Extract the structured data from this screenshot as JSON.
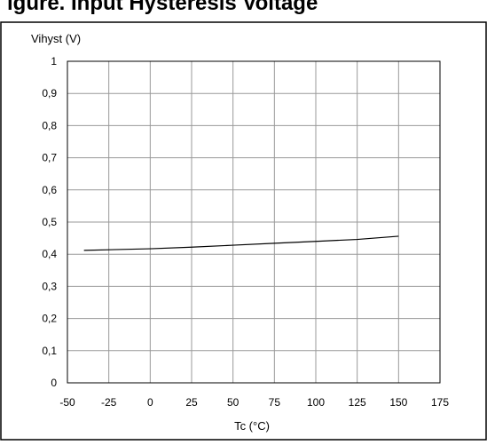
{
  "banner_text": "igure. Input Hysteresis Voltage",
  "chart_data": {
    "type": "line",
    "title": "",
    "ylabel": "Vihyst (V)",
    "xlabel": "Tc (°C)",
    "xlim": [
      -50,
      175
    ],
    "ylim": [
      0,
      1
    ],
    "x_ticks": [
      -50,
      -25,
      0,
      25,
      50,
      75,
      100,
      125,
      150,
      175
    ],
    "x_tick_labels": [
      "-50",
      "-25",
      "0",
      "25",
      "50",
      "75",
      "100",
      "125",
      "150",
      "175"
    ],
    "y_ticks": [
      0,
      0.1,
      0.2,
      0.3,
      0.4,
      0.5,
      0.6,
      0.7,
      0.8,
      0.9,
      1
    ],
    "y_tick_labels": [
      "0",
      "0,1",
      "0,2",
      "0,3",
      "0,4",
      "0,5",
      "0,6",
      "0,7",
      "0,8",
      "0,9",
      "1"
    ],
    "grid": true,
    "series": [
      {
        "x": [
          -40,
          0,
          25,
          50,
          75,
          100,
          125,
          150
        ],
        "y": [
          0.412,
          0.417,
          0.422,
          0.428,
          0.434,
          0.44,
          0.446,
          0.456
        ]
      }
    ],
    "colors": {
      "line": "#000000",
      "grid": "#999999",
      "border": "#000000"
    }
  }
}
